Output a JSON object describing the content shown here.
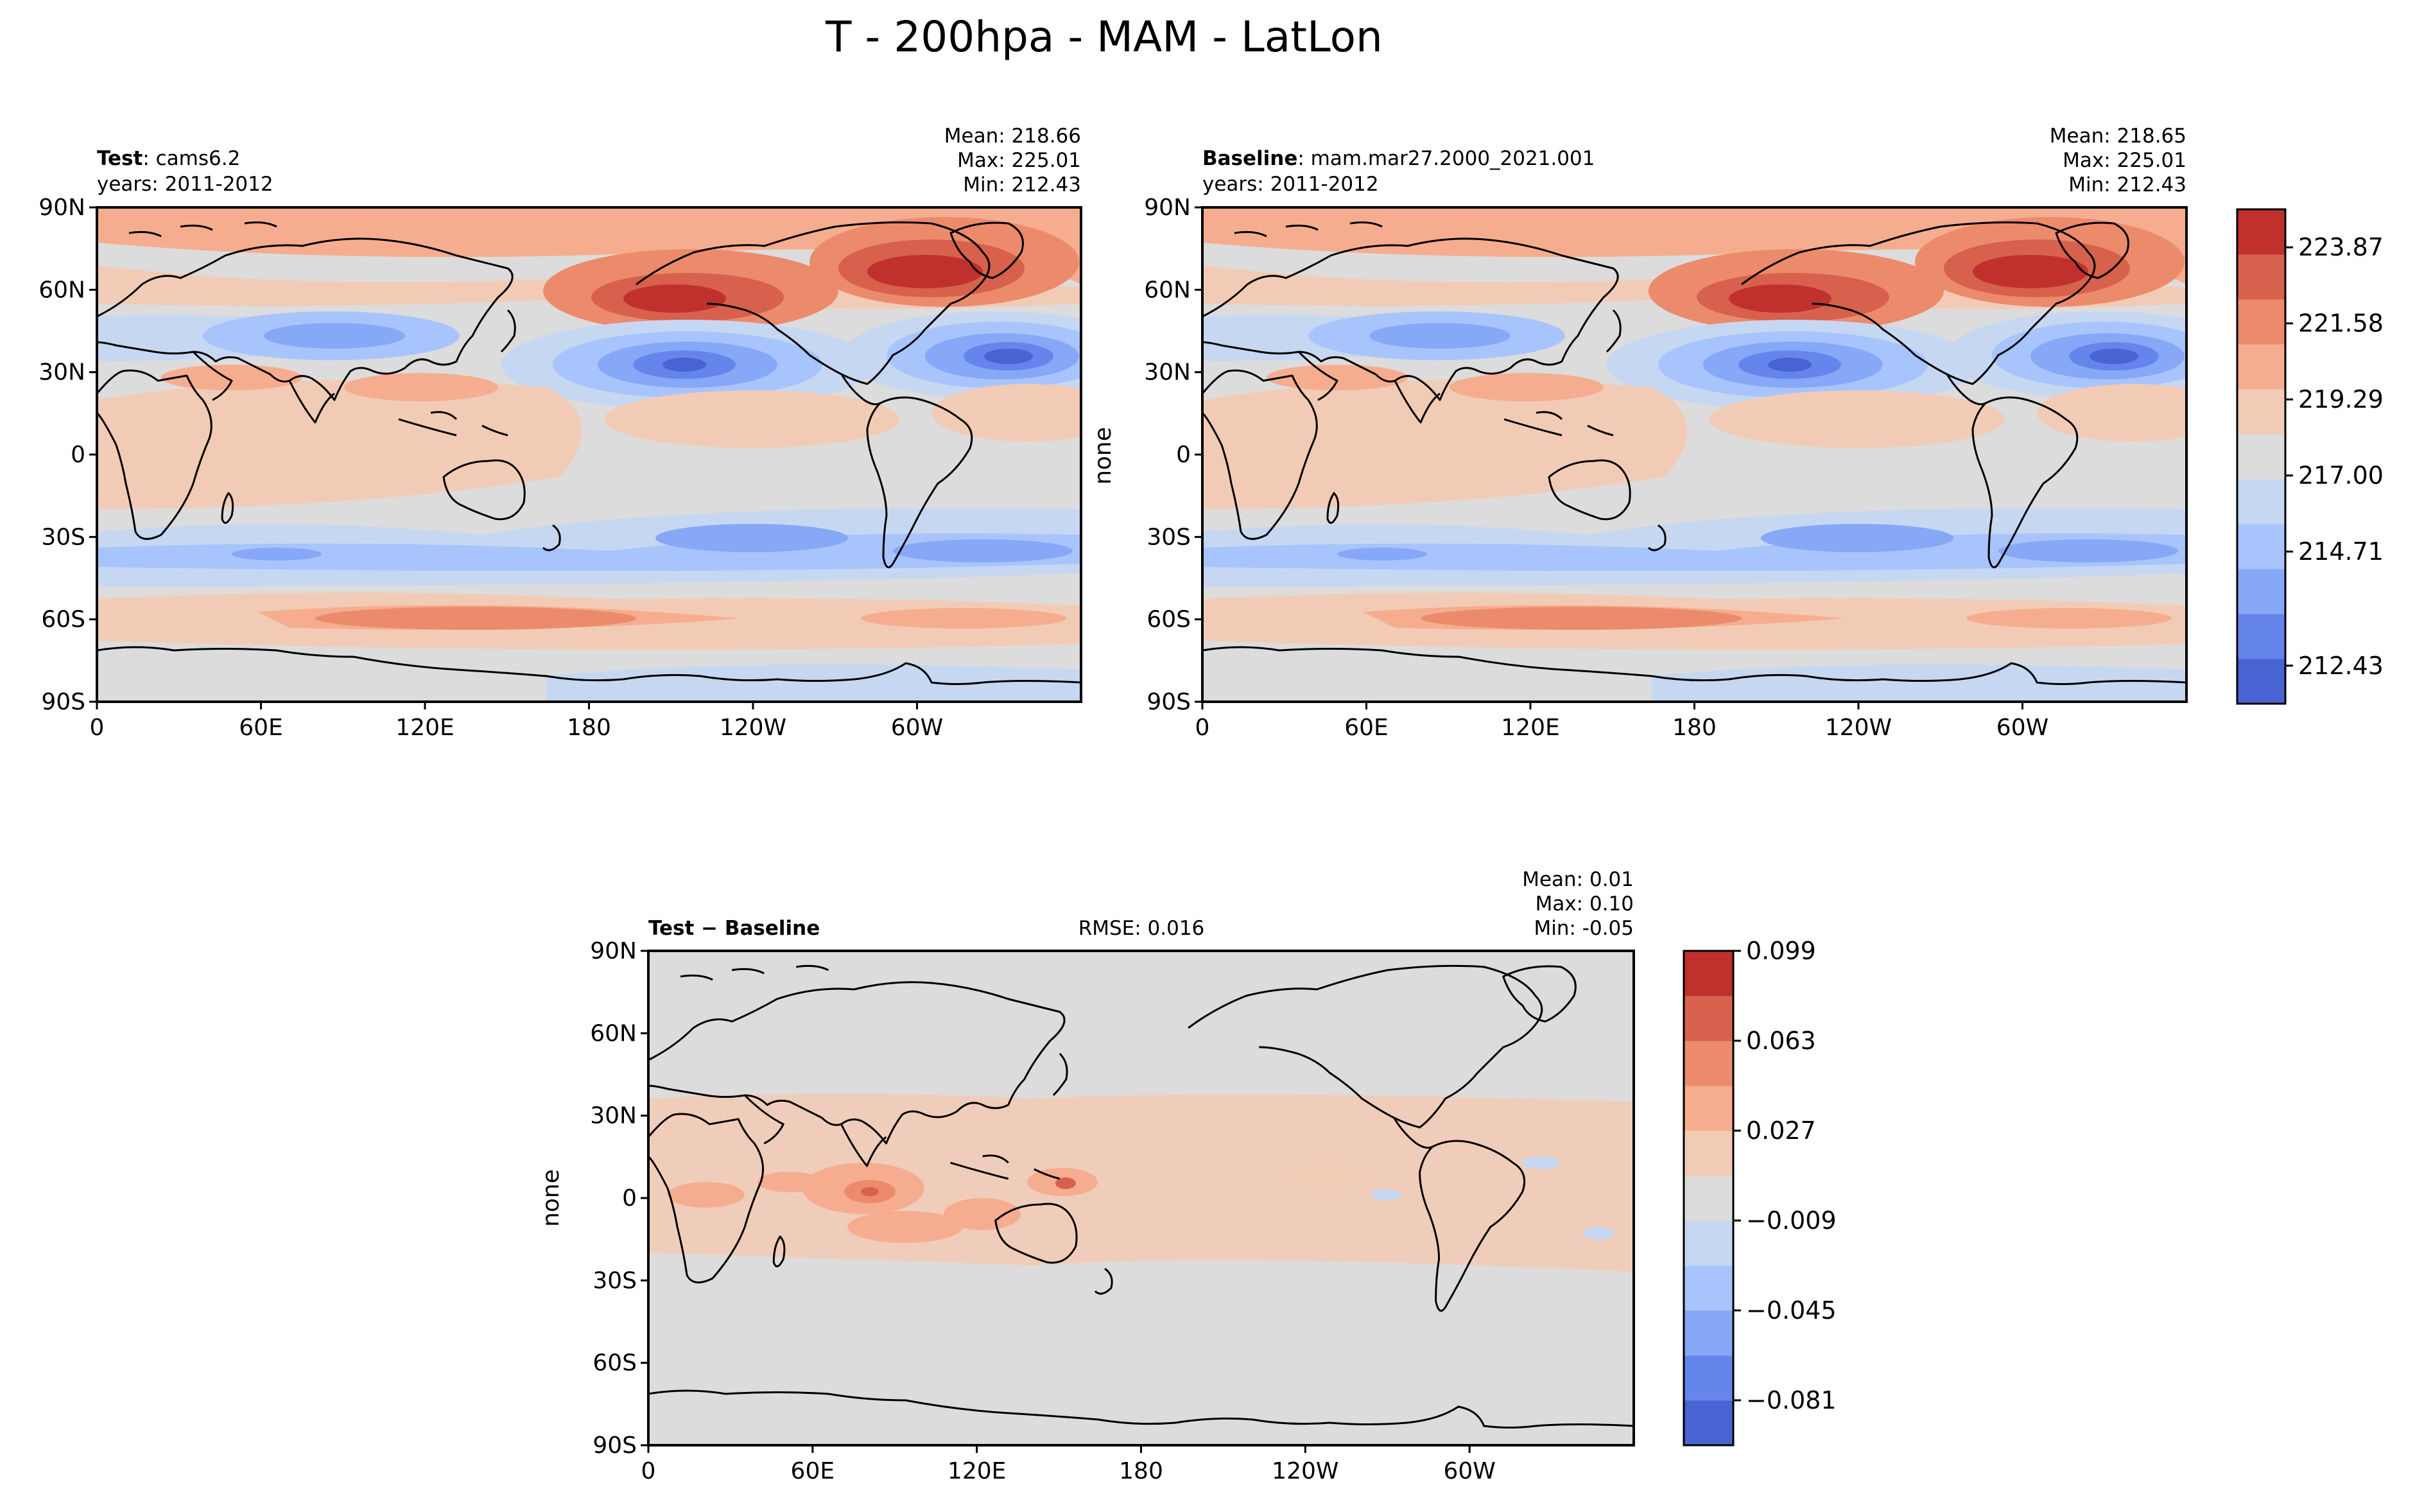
{
  "figure": {
    "title": "T - 200hpa - MAM - LatLon"
  },
  "axes": {
    "lat_ticks": [
      "90N",
      "60N",
      "30N",
      "0",
      "30S",
      "60S",
      "90S"
    ],
    "lon_ticks": [
      "0",
      "60E",
      "120E",
      "180",
      "120W",
      "60W"
    ]
  },
  "panels": {
    "test": {
      "label_bold": "Test",
      "label_rest": ": cams6.2",
      "years": "years: 2011-2012",
      "mean": "Mean: 218.66",
      "max": "Max: 225.01",
      "min": "Min: 212.43"
    },
    "baseline": {
      "label_bold": "Baseline",
      "label_rest": ": mam.mar27.2000_2021.001",
      "years": "years: 2011-2012",
      "mean": "Mean: 218.65",
      "max": "Max: 225.01",
      "min": "Min: 212.43",
      "ylabel": "none"
    },
    "diff": {
      "label_bold": "Test − Baseline",
      "rmse": "RMSE: 0.016",
      "mean": "Mean:  0.01",
      "max": "Max:  0.10",
      "min": "Min: -0.05",
      "ylabel": "none"
    }
  },
  "colorbars": {
    "top": {
      "tick_labels": [
        "223.87",
        "221.58",
        "219.29",
        "217.00",
        "214.71",
        "212.43"
      ],
      "colors": [
        "#4a63d3",
        "#6585ec",
        "#87a7f7",
        "#a8c4fd",
        "#c6d7f2",
        "#dcdcdc",
        "#f2cbb6",
        "#f6ad8f",
        "#ec8b6c",
        "#d7614c",
        "#c0312d"
      ]
    },
    "diff": {
      "tick_labels": [
        "0.099",
        "0.063",
        "0.027",
        "−0.009",
        "−0.045",
        "−0.081"
      ],
      "colors": [
        "#4a63d3",
        "#6585ec",
        "#87a7f7",
        "#a8c4fd",
        "#c6d7f2",
        "#dcdcdc",
        "#f2cbb6",
        "#f6ad8f",
        "#ec8b6c",
        "#d7614c",
        "#c0312d"
      ]
    }
  },
  "chart_data": [
    {
      "type": "heatmap",
      "subtype": "filled-contour map (lat-lon)",
      "title": "Test: cams6.2",
      "variable": "T at 200 hPa, MAM",
      "x": "longitude",
      "y": "latitude",
      "xlim": [
        0,
        360
      ],
      "ylim": [
        -90,
        90
      ],
      "levels": [
        212.43,
        214.71,
        217.0,
        219.29,
        221.58,
        223.87,
        225.01
      ],
      "stats": {
        "mean": 218.66,
        "max": 225.01,
        "min": 212.43
      },
      "years": "2011-2012"
    },
    {
      "type": "heatmap",
      "subtype": "filled-contour map (lat-lon)",
      "title": "Baseline: mam.mar27.2000_2021.001",
      "variable": "T at 200 hPa, MAM",
      "x": "longitude",
      "y": "latitude",
      "xlim": [
        0,
        360
      ],
      "ylim": [
        -90,
        90
      ],
      "ylabel": "none",
      "levels": [
        212.43,
        214.71,
        217.0,
        219.29,
        221.58,
        223.87,
        225.01
      ],
      "stats": {
        "mean": 218.65,
        "max": 225.01,
        "min": 212.43
      },
      "years": "2011-2012"
    },
    {
      "type": "heatmap",
      "subtype": "filled-contour map (lat-lon)",
      "title": "Test - Baseline",
      "x": "longitude",
      "y": "latitude",
      "xlim": [
        0,
        360
      ],
      "ylim": [
        -90,
        90
      ],
      "ylabel": "none",
      "levels": [
        -0.099,
        -0.081,
        -0.045,
        -0.009,
        0.027,
        0.063,
        0.099
      ],
      "stats": {
        "mean": 0.01,
        "max": 0.1,
        "min": -0.05,
        "rmse": 0.016
      }
    }
  ]
}
